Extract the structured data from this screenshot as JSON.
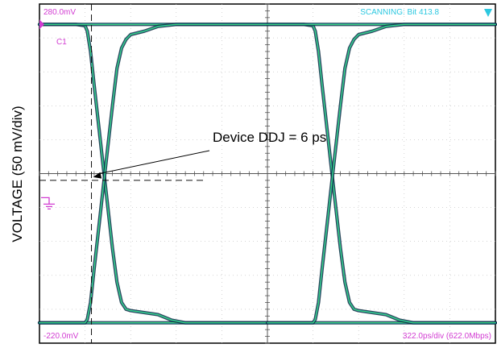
{
  "chart_data": {
    "type": "line",
    "title": "",
    "ylabel": "VOLTAGE (50 mV/div)",
    "xlabel": "",
    "top_voltage": "280.0mV",
    "bottom_voltage": "-220.0mV",
    "status": "SCANNING: Bit 413.8",
    "timebase": "322.0ps/div (622.0Mbps)",
    "channel_label": "C1",
    "ylim": [
      -220,
      280
    ],
    "x_divisions": 10,
    "y_divisions": 10,
    "series": [
      {
        "values": [
          [
            0.0,
            250
          ],
          [
            0.3,
            250
          ],
          [
            0.8,
            250
          ],
          [
            1.0,
            248
          ],
          [
            1.05,
            240
          ],
          [
            1.12,
            210
          ],
          [
            1.2,
            160
          ],
          [
            1.3,
            100
          ],
          [
            1.4,
            40
          ],
          [
            1.5,
            -20
          ],
          [
            1.6,
            -80
          ],
          [
            1.7,
            -130
          ],
          [
            1.8,
            -160
          ],
          [
            1.9,
            -170
          ],
          [
            2.0,
            -172
          ],
          [
            2.3,
            -175
          ],
          [
            2.6,
            -178
          ],
          [
            2.9,
            -186
          ],
          [
            3.2,
            -190
          ],
          [
            3.6,
            -190
          ],
          [
            4.0,
            -190
          ],
          [
            5.0,
            -190
          ],
          [
            6.4,
            -190
          ],
          [
            7.0,
            -190
          ],
          [
            7.3,
            -190
          ],
          [
            7.6,
            -190
          ],
          [
            8.2,
            -190
          ],
          [
            9.0,
            -190
          ],
          [
            10.0,
            -190
          ]
        ]
      },
      {
        "values": [
          [
            0.0,
            -190
          ],
          [
            1.0,
            -190
          ],
          [
            1.05,
            -185
          ],
          [
            1.12,
            -160
          ],
          [
            1.2,
            -110
          ],
          [
            1.3,
            -50
          ],
          [
            1.4,
            10
          ],
          [
            1.5,
            70
          ],
          [
            1.6,
            130
          ],
          [
            1.7,
            185
          ],
          [
            1.8,
            215
          ],
          [
            1.9,
            228
          ],
          [
            2.0,
            235
          ],
          [
            2.3,
            240
          ],
          [
            2.6,
            247
          ],
          [
            3.0,
            250
          ],
          [
            4.0,
            250
          ],
          [
            5.0,
            250
          ],
          [
            7.0,
            250
          ],
          [
            8.0,
            250
          ],
          [
            10.0,
            250
          ]
        ]
      }
    ],
    "annotation": {
      "text": "Device DDJ = 6 ps",
      "target": [
        1.14,
        20
      ]
    },
    "reference_marker": 20,
    "cursor_x": 1.14
  }
}
